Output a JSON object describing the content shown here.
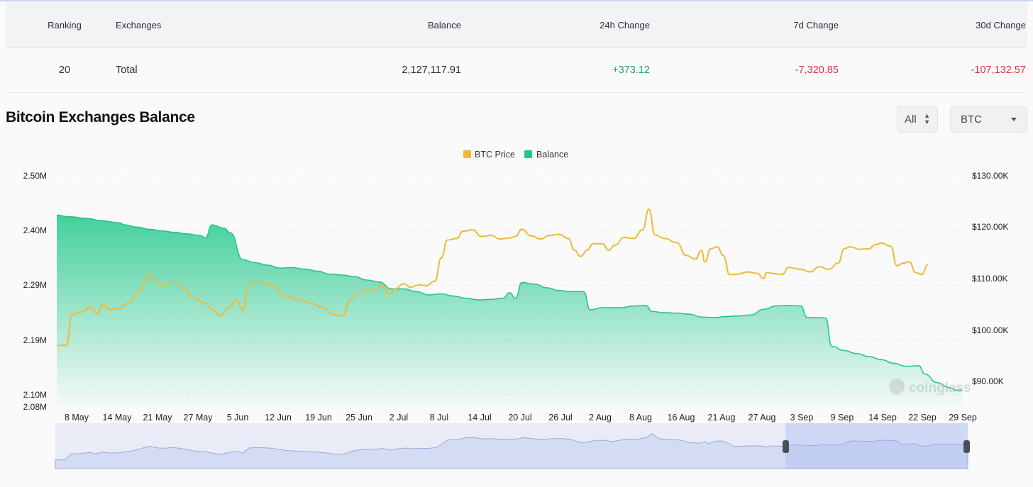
{
  "table": {
    "headers": {
      "ranking": "Ranking",
      "exchanges": "Exchanges",
      "balance": "Balance",
      "change_24h": "24h Change",
      "change_7d": "7d Change",
      "change_30d": "30d Change"
    },
    "row": {
      "ranking": "20",
      "exchange": "Total",
      "balance": "2,127,117.91",
      "change_24h": "+373.12",
      "change_7d": "-7,320.85",
      "change_30d": "-107,132.57"
    }
  },
  "section": {
    "title": "Bitcoin Exchanges Balance"
  },
  "controls": {
    "range_select": "All",
    "asset_select": "BTC"
  },
  "watermark": "coinglass",
  "colors": {
    "btc_price": "#f0b93a",
    "balance": "#1fc98a",
    "positive": "#1aa36b",
    "negative": "#e0303f"
  },
  "chart_data": {
    "type": "area",
    "legend_placement": "top-center",
    "legend": [
      "BTC Price",
      "Balance"
    ],
    "x_ticks": [
      "8 May",
      "14 May",
      "21 May",
      "27 May",
      "5 Jun",
      "12 Jun",
      "19 Jun",
      "25 Jun",
      "2 Jul",
      "8 Jul",
      "14 Jul",
      "20 Jul",
      "26 Jul",
      "2 Aug",
      "8 Aug",
      "16 Aug",
      "21 Aug",
      "27 Aug",
      "3 Sep",
      "9 Sep",
      "14 Sep",
      "22 Sep",
      "29 Sep"
    ],
    "y_left": {
      "ticks": [
        "2.50M",
        "2.40M",
        "2.29M",
        "2.19M",
        "2.10M",
        "2.08M"
      ],
      "range": [
        2080000,
        2500000
      ]
    },
    "y_right": {
      "ticks": [
        "$130.00K",
        "$120.00K",
        "$110.00K",
        "$100.00K",
        "$90.00K"
      ],
      "range": [
        86000,
        130000
      ]
    },
    "grid": "horizontal-dashed",
    "x_range_days": [
      0,
      146
    ],
    "series": [
      {
        "name": "Balance",
        "axis": "left",
        "points": [
          [
            0,
            2428000
          ],
          [
            2,
            2425000
          ],
          [
            5,
            2422000
          ],
          [
            7,
            2418000
          ],
          [
            10,
            2414000
          ],
          [
            11,
            2410000
          ],
          [
            13,
            2406000
          ],
          [
            15,
            2402000
          ],
          [
            17,
            2399000
          ],
          [
            19,
            2396000
          ],
          [
            21,
            2393000
          ],
          [
            23,
            2390000
          ],
          [
            24,
            2385000
          ],
          [
            25,
            2410000
          ],
          [
            27,
            2404000
          ],
          [
            28,
            2395000
          ],
          [
            30,
            2341000
          ],
          [
            32,
            2335000
          ],
          [
            34,
            2330000
          ],
          [
            36,
            2324000
          ],
          [
            38,
            2325000
          ],
          [
            40,
            2322000
          ],
          [
            42,
            2318000
          ],
          [
            44,
            2312000
          ],
          [
            46,
            2310000
          ],
          [
            48,
            2307000
          ],
          [
            50,
            2300000
          ],
          [
            52,
            2296000
          ],
          [
            54,
            2283000
          ],
          [
            56,
            2283000
          ],
          [
            58,
            2278000
          ],
          [
            60,
            2272000
          ],
          [
            62,
            2274000
          ],
          [
            64,
            2270000
          ],
          [
            66,
            2266000
          ],
          [
            68,
            2263000
          ],
          [
            70,
            2264000
          ],
          [
            72,
            2266000
          ],
          [
            73,
            2276000
          ],
          [
            74,
            2266000
          ],
          [
            75,
            2295000
          ],
          [
            77,
            2292000
          ],
          [
            79,
            2285000
          ],
          [
            81,
            2280000
          ],
          [
            83,
            2278000
          ],
          [
            85,
            2278000
          ],
          [
            86,
            2245000
          ],
          [
            88,
            2249000
          ],
          [
            91,
            2249000
          ],
          [
            93,
            2252000
          ],
          [
            95,
            2253000
          ],
          [
            96,
            2242000
          ],
          [
            98,
            2240000
          ],
          [
            100,
            2239000
          ],
          [
            102,
            2237000
          ],
          [
            104,
            2232000
          ],
          [
            106,
            2231000
          ],
          [
            108,
            2233000
          ],
          [
            110,
            2234000
          ],
          [
            112,
            2236000
          ],
          [
            114,
            2246000
          ],
          [
            116,
            2252000
          ],
          [
            118,
            2253000
          ],
          [
            120,
            2252000
          ],
          [
            121,
            2231000
          ],
          [
            123,
            2231000
          ],
          [
            124,
            2230000
          ],
          [
            125,
            2180000
          ],
          [
            127,
            2173000
          ],
          [
            129,
            2168000
          ],
          [
            131,
            2163000
          ],
          [
            133,
            2158000
          ],
          [
            135,
            2152000
          ],
          [
            137,
            2147000
          ],
          [
            139,
            2148000
          ],
          [
            140,
            2134000
          ],
          [
            142,
            2120000
          ],
          [
            144,
            2112000
          ],
          [
            145,
            2108000
          ],
          [
            146,
            2108000
          ]
        ]
      },
      {
        "name": "BTC Price",
        "axis": "right",
        "points": [
          [
            0,
            97000
          ],
          [
            1.5,
            97000
          ],
          [
            2.5,
            103000
          ],
          [
            4,
            103500
          ],
          [
            5.5,
            104500
          ],
          [
            6.5,
            103200
          ],
          [
            7.5,
            105000
          ],
          [
            8.5,
            104000
          ],
          [
            10,
            104200
          ],
          [
            11.5,
            105200
          ],
          [
            13,
            107200
          ],
          [
            15,
            110800
          ],
          [
            16.5,
            109000
          ],
          [
            17.5,
            108800
          ],
          [
            19,
            109500
          ],
          [
            20.5,
            108200
          ],
          [
            22,
            106200
          ],
          [
            24,
            105200
          ],
          [
            25,
            104000
          ],
          [
            26.5,
            102800
          ],
          [
            27.5,
            104200
          ],
          [
            29,
            105800
          ],
          [
            30,
            103800
          ],
          [
            31,
            109000
          ],
          [
            32.5,
            109500
          ],
          [
            34.5,
            108800
          ],
          [
            37,
            106500
          ],
          [
            39,
            105800
          ],
          [
            41,
            105200
          ],
          [
            43,
            104300
          ],
          [
            44.5,
            103000
          ],
          [
            46,
            102700
          ],
          [
            47.5,
            106000
          ],
          [
            49,
            107500
          ],
          [
            51,
            107800
          ],
          [
            52.5,
            108500
          ],
          [
            53.5,
            107000
          ],
          [
            54,
            107200
          ],
          [
            54.5,
            108000
          ],
          [
            56,
            109000
          ],
          [
            57,
            108300
          ],
          [
            58.5,
            108800
          ],
          [
            59.5,
            108600
          ],
          [
            61,
            109500
          ],
          [
            62,
            114000
          ],
          [
            63,
            117500
          ],
          [
            64.5,
            117800
          ],
          [
            65.5,
            119200
          ],
          [
            67,
            119500
          ],
          [
            68.5,
            118200
          ],
          [
            70,
            118400
          ],
          [
            71.5,
            117700
          ],
          [
            73,
            117900
          ],
          [
            74,
            118200
          ],
          [
            75,
            119600
          ],
          [
            76.5,
            118300
          ],
          [
            78,
            117700
          ],
          [
            79.5,
            118400
          ],
          [
            81,
            118600
          ],
          [
            82.5,
            117800
          ],
          [
            83.5,
            115500
          ],
          [
            84.5,
            114300
          ],
          [
            85.5,
            115500
          ],
          [
            86.5,
            116800
          ],
          [
            88,
            116800
          ],
          [
            89,
            115500
          ],
          [
            90,
            116500
          ],
          [
            91.5,
            118000
          ],
          [
            93,
            117800
          ],
          [
            94.5,
            119500
          ],
          [
            95.5,
            123500
          ],
          [
            96.5,
            118500
          ],
          [
            98,
            117800
          ],
          [
            100,
            117000
          ],
          [
            101.5,
            114500
          ],
          [
            103,
            113800
          ],
          [
            104,
            115500
          ],
          [
            104.5,
            113200
          ],
          [
            105.5,
            115800
          ],
          [
            106.5,
            116200
          ],
          [
            107.5,
            114500
          ],
          [
            108.5,
            110800
          ],
          [
            109.5,
            110800
          ],
          [
            111.5,
            111300
          ],
          [
            113,
            111000
          ],
          [
            114,
            110000
          ],
          [
            114.5,
            111200
          ],
          [
            115.5,
            111000
          ],
          [
            117,
            110800
          ],
          [
            118,
            112200
          ],
          [
            120,
            111800
          ],
          [
            121.5,
            111300
          ],
          [
            123,
            112300
          ],
          [
            124.5,
            111800
          ],
          [
            126,
            113000
          ],
          [
            127,
            115800
          ],
          [
            128,
            116200
          ],
          [
            129.5,
            115700
          ],
          [
            131,
            115800
          ],
          [
            132,
            116600
          ],
          [
            133,
            116900
          ],
          [
            134.5,
            116300
          ],
          [
            135.5,
            112500
          ],
          [
            136.5,
            113000
          ],
          [
            137.5,
            113300
          ],
          [
            138.5,
            111200
          ],
          [
            139.5,
            110800
          ],
          [
            140.5,
            112800
          ]
        ]
      }
    ]
  }
}
